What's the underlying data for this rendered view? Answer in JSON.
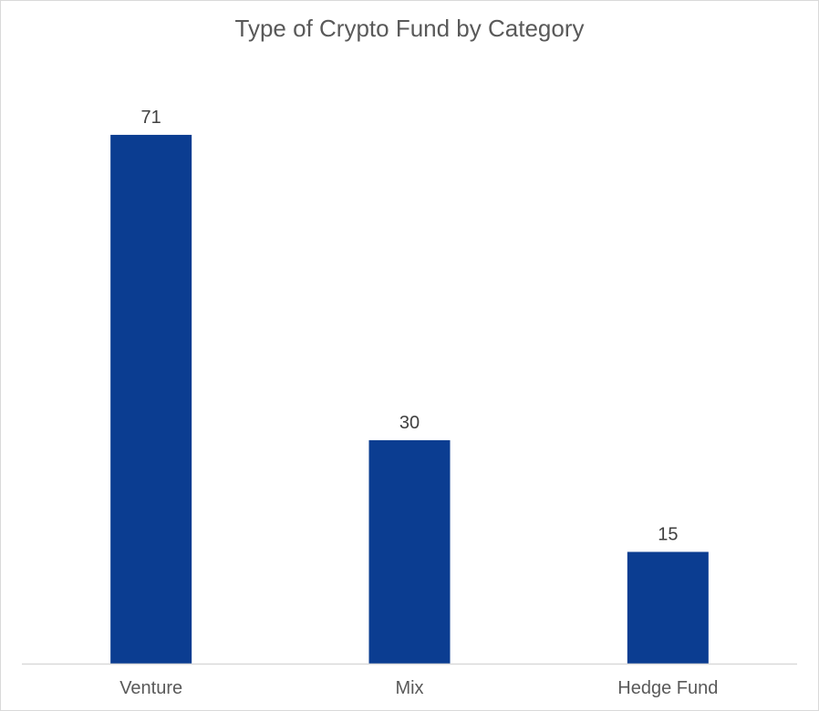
{
  "chart_data": {
    "type": "bar",
    "title": "Type of Crypto Fund by Category",
    "categories": [
      "Venture",
      "Mix",
      "Hedge Fund"
    ],
    "values": [
      71,
      30,
      15
    ],
    "xlabel": "",
    "ylabel": "",
    "ylim": [
      0,
      80
    ],
    "grid": false,
    "legend": "none",
    "bar_color": "#0b3d91",
    "axis_color": "#d9d9d9"
  }
}
